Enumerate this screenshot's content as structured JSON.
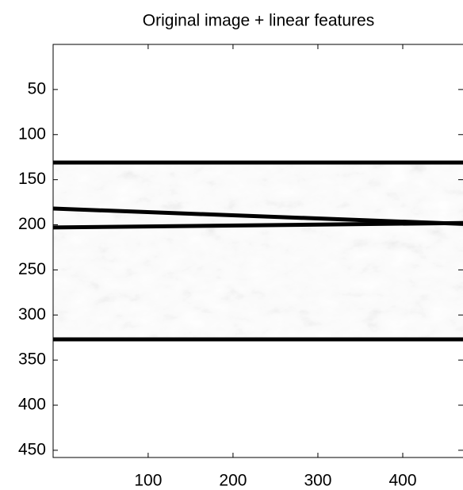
{
  "chart_data": {
    "type": "image",
    "title": "Original image + linear features",
    "xlim": [
      -12,
      471
    ],
    "ylim": [
      0,
      458
    ],
    "y_reversed": true,
    "xticks": [
      100,
      200,
      300,
      400
    ],
    "yticks": [
      50,
      100,
      150,
      200,
      250,
      300,
      350,
      400,
      450
    ],
    "image_rows": [
      130,
      328
    ],
    "lines": [
      {
        "color": "#000000",
        "x": [
          -12,
          471
        ],
        "y": [
          131,
          131
        ]
      },
      {
        "color": "#000000",
        "x": [
          -12,
          471
        ],
        "y": [
          182,
          199
        ]
      },
      {
        "color": "#000000",
        "x": [
          -12,
          471
        ],
        "y": [
          203,
          198
        ]
      },
      {
        "color": "#000000",
        "x": [
          -12,
          471
        ],
        "y": [
          327,
          327
        ]
      }
    ]
  }
}
